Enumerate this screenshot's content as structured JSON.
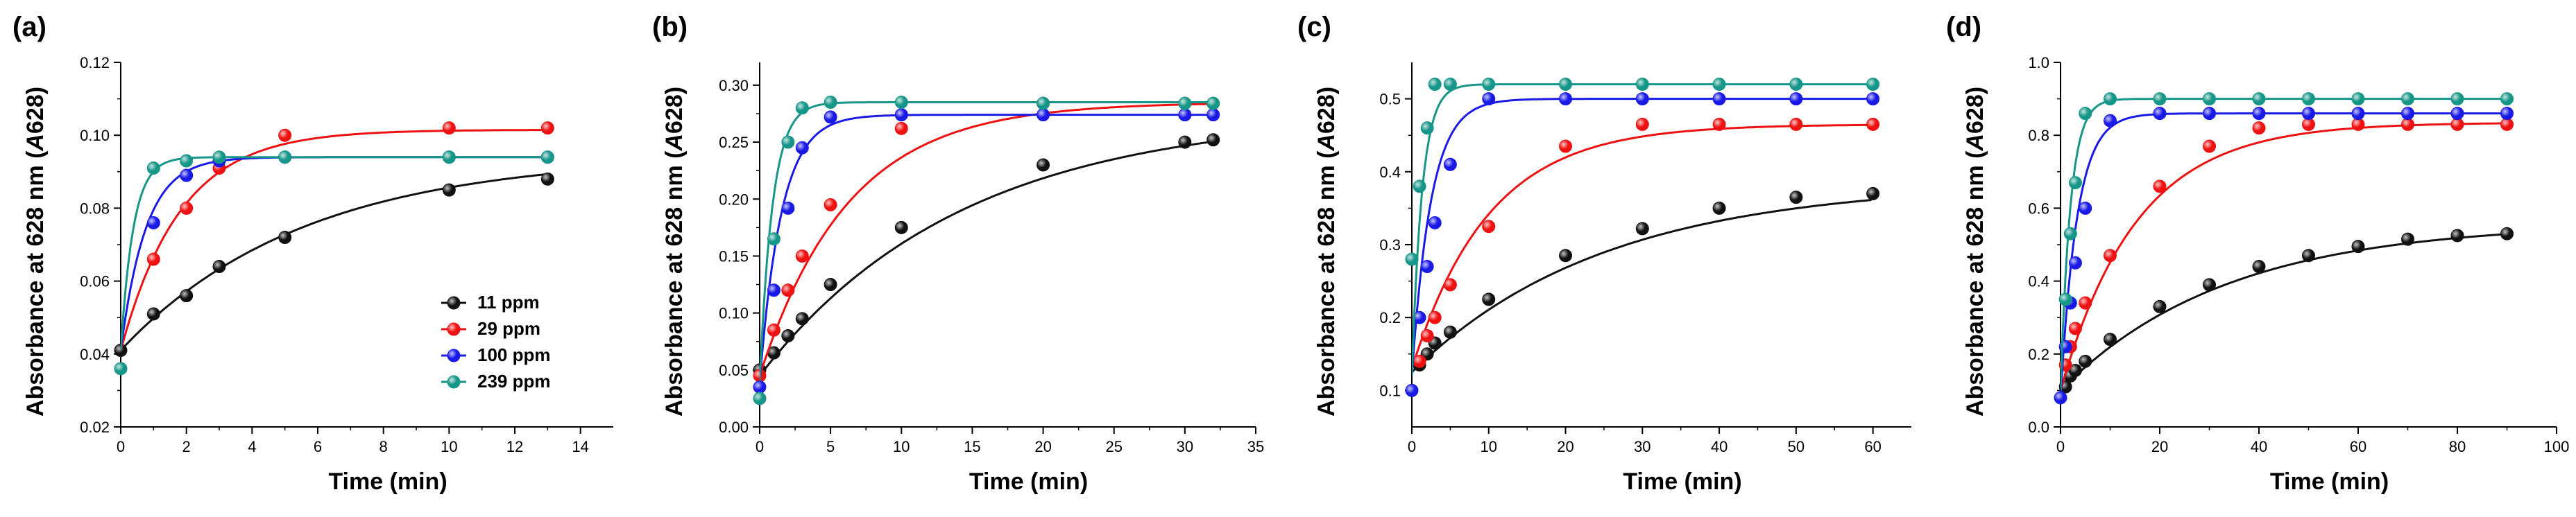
{
  "chart_data": [
    {
      "type": "scatter",
      "panel_label": "(a)",
      "xlabel": "Time (min)",
      "ylabel_prefix": "Absorbance at 628 nm (",
      "ylabel_italic": "A",
      "ylabel_suffix": "628)",
      "xlim": [
        0,
        15
      ],
      "ylim": [
        0.02,
        0.12
      ],
      "xticks": [
        0,
        2,
        4,
        6,
        8,
        10,
        12,
        14
      ],
      "xtick_labels": [
        "0",
        "2",
        "4",
        "6",
        "8",
        "10",
        "12",
        "14"
      ],
      "yticks": [
        0.02,
        0.04,
        0.06,
        0.08,
        0.1,
        0.12
      ],
      "ytick_labels": [
        "0.02",
        "0.04",
        "0.06",
        "0.08",
        "0.10",
        "0.12"
      ],
      "series": [
        {
          "name": "11 ppm",
          "color": "#111111",
          "x": [
            0,
            1,
            2,
            3,
            5,
            10,
            13
          ],
          "y": [
            0.041,
            0.051,
            0.056,
            0.064,
            0.072,
            0.085,
            0.088
          ],
          "y0": 0.041,
          "A": 0.0535,
          "k": 0.18
        },
        {
          "name": "29 ppm",
          "color": "#ee1111",
          "x": [
            1,
            2,
            3,
            5,
            10,
            13
          ],
          "y": [
            0.066,
            0.08,
            0.091,
            0.1,
            0.102,
            0.102
          ],
          "y0": 0.041,
          "A": 0.0605,
          "k": 0.55
        },
        {
          "name": "100 ppm",
          "color": "#1a1ae6",
          "x": [
            1,
            2,
            3,
            5,
            10,
            13
          ],
          "y": [
            0.076,
            0.089,
            0.093,
            0.094,
            0.094,
            0.094
          ],
          "y0": 0.041,
          "A": 0.053,
          "k": 1.3
        },
        {
          "name": "239 ppm",
          "color": "#169688",
          "x": [
            0,
            1,
            2,
            3,
            5,
            10,
            13
          ],
          "y": [
            0.036,
            0.091,
            0.093,
            0.094,
            0.094,
            0.094,
            0.094
          ],
          "y0": 0.041,
          "A": 0.053,
          "k": 2.6
        }
      ],
      "legend": [
        "11 ppm",
        "29 ppm",
        "100 ppm",
        "239 ppm"
      ]
    },
    {
      "type": "scatter",
      "panel_label": "(b)",
      "xlabel": "Time (min)",
      "ylabel_prefix": "Absorbance at 628 nm (",
      "ylabel_italic": "A",
      "ylabel_suffix": "628)",
      "xlim": [
        0,
        35
      ],
      "ylim": [
        0.0,
        0.32
      ],
      "xticks": [
        0,
        5,
        10,
        15,
        20,
        25,
        30,
        35
      ],
      "xtick_labels": [
        "0",
        "5",
        "10",
        "15",
        "20",
        "25",
        "30",
        "35"
      ],
      "yticks": [
        0.0,
        0.05,
        0.1,
        0.15,
        0.2,
        0.25,
        0.3
      ],
      "ytick_labels": [
        "0.00",
        "0.05",
        "0.10",
        "0.15",
        "0.20",
        "0.25",
        "0.30"
      ],
      "series": [
        {
          "name": "11 ppm",
          "color": "#111111",
          "x": [
            0,
            1,
            2,
            3,
            5,
            10,
            20,
            30,
            32
          ],
          "y": [
            0.05,
            0.065,
            0.08,
            0.095,
            0.125,
            0.175,
            0.23,
            0.25,
            0.252
          ],
          "y0": 0.045,
          "A": 0.23,
          "k": 0.07
        },
        {
          "name": "29 ppm",
          "color": "#ee1111",
          "x": [
            0,
            1,
            2,
            3,
            5,
            10,
            20,
            30,
            32
          ],
          "y": [
            0.045,
            0.085,
            0.12,
            0.15,
            0.195,
            0.262,
            0.284,
            0.284,
            0.284
          ],
          "y0": 0.045,
          "A": 0.24,
          "k": 0.16
        },
        {
          "name": "100 ppm",
          "color": "#1a1ae6",
          "x": [
            0,
            1,
            2,
            3,
            5,
            10,
            20,
            30,
            32
          ],
          "y": [
            0.035,
            0.12,
            0.192,
            0.245,
            0.272,
            0.274,
            0.274,
            0.274,
            0.274
          ],
          "y0": 0.04,
          "A": 0.234,
          "k": 0.65
        },
        {
          "name": "239 ppm",
          "color": "#169688",
          "x": [
            0,
            1,
            2,
            3,
            5,
            10,
            20,
            30,
            32
          ],
          "y": [
            0.025,
            0.165,
            0.25,
            0.28,
            0.285,
            0.285,
            0.284,
            0.284,
            0.284
          ],
          "y0": 0.04,
          "A": 0.245,
          "k": 1.1
        }
      ]
    },
    {
      "type": "scatter",
      "panel_label": "(c)",
      "xlabel": "Time (min)",
      "ylabel_prefix": "Absorbance at 628 nm (",
      "ylabel_italic": "A",
      "ylabel_suffix": "628)",
      "xlim": [
        0,
        65
      ],
      "ylim": [
        0.05,
        0.55
      ],
      "xticks": [
        0,
        10,
        20,
        30,
        40,
        50,
        60
      ],
      "xtick_labels": [
        "0",
        "10",
        "20",
        "30",
        "40",
        "50",
        "60"
      ],
      "yticks": [
        0.1,
        0.2,
        0.3,
        0.4,
        0.5
      ],
      "ytick_labels": [
        "0.1",
        "0.2",
        "0.3",
        "0.4",
        "0.5"
      ],
      "series": [
        {
          "name": "11 ppm",
          "color": "#111111",
          "x": [
            1,
            2,
            3,
            5,
            10,
            20,
            30,
            40,
            50,
            60
          ],
          "y": [
            0.135,
            0.15,
            0.165,
            0.18,
            0.225,
            0.285,
            0.322,
            0.35,
            0.365,
            0.37
          ],
          "y0": 0.125,
          "A": 0.26,
          "k": 0.04
        },
        {
          "name": "29 ppm",
          "color": "#ee1111",
          "x": [
            1,
            2,
            3,
            5,
            10,
            20,
            30,
            40,
            50,
            60
          ],
          "y": [
            0.14,
            0.175,
            0.2,
            0.245,
            0.325,
            0.435,
            0.465,
            0.465,
            0.465,
            0.465
          ],
          "y0": 0.13,
          "A": 0.335,
          "k": 0.1
        },
        {
          "name": "100 ppm",
          "color": "#1a1ae6",
          "x": [
            0,
            1,
            2,
            3,
            5,
            10,
            20,
            30,
            40,
            50,
            60
          ],
          "y": [
            0.1,
            0.2,
            0.27,
            0.33,
            0.41,
            0.5,
            0.5,
            0.5,
            0.5,
            0.5,
            0.5
          ],
          "y0": 0.12,
          "A": 0.38,
          "k": 0.4
        },
        {
          "name": "239 ppm",
          "color": "#169688",
          "x": [
            0,
            1,
            2,
            3,
            5,
            10,
            20,
            30,
            40,
            50,
            60
          ],
          "y": [
            0.28,
            0.38,
            0.46,
            0.52,
            0.52,
            0.52,
            0.52,
            0.52,
            0.52,
            0.52,
            0.52
          ],
          "y0": 0.12,
          "A": 0.4,
          "k": 0.75
        }
      ]
    },
    {
      "type": "scatter",
      "panel_label": "(d)",
      "xlabel": "Time (min)",
      "ylabel_prefix": "Absorbance at 628 nm (",
      "ylabel_italic": "A",
      "ylabel_suffix": "628)",
      "xlim": [
        0,
        100
      ],
      "ylim": [
        0.0,
        1.0
      ],
      "xticks": [
        0,
        20,
        40,
        60,
        80,
        100
      ],
      "xtick_labels": [
        "0",
        "20",
        "40",
        "60",
        "80",
        "100"
      ],
      "yticks": [
        0.0,
        0.2,
        0.4,
        0.6,
        0.8,
        1.0
      ],
      "ytick_labels": [
        "0.0",
        "0.2",
        "0.4",
        "0.6",
        "0.8",
        "1.0"
      ],
      "series": [
        {
          "name": "11 ppm",
          "color": "#111111",
          "x": [
            1,
            2,
            3,
            5,
            10,
            20,
            30,
            40,
            50,
            60,
            70,
            80,
            90
          ],
          "y": [
            0.11,
            0.14,
            0.155,
            0.18,
            0.24,
            0.33,
            0.39,
            0.44,
            0.47,
            0.495,
            0.515,
            0.525,
            0.53
          ],
          "y0": 0.1,
          "A": 0.46,
          "k": 0.03
        },
        {
          "name": "29 ppm",
          "color": "#ee1111",
          "x": [
            1,
            2,
            3,
            5,
            10,
            20,
            30,
            40,
            50,
            60,
            70,
            80,
            90
          ],
          "y": [
            0.17,
            0.22,
            0.27,
            0.34,
            0.47,
            0.66,
            0.77,
            0.82,
            0.83,
            0.83,
            0.83,
            0.83,
            0.83
          ],
          "y0": 0.1,
          "A": 0.735,
          "k": 0.065
        },
        {
          "name": "100 ppm",
          "color": "#1a1ae6",
          "x": [
            0,
            1,
            2,
            3,
            5,
            10,
            20,
            30,
            40,
            50,
            60,
            70,
            80,
            90
          ],
          "y": [
            0.08,
            0.22,
            0.34,
            0.45,
            0.6,
            0.84,
            0.86,
            0.86,
            0.86,
            0.86,
            0.86,
            0.86,
            0.86,
            0.86
          ],
          "y0": 0.08,
          "A": 0.78,
          "k": 0.3
        },
        {
          "name": "239 ppm",
          "color": "#169688",
          "x": [
            1,
            2,
            3,
            5,
            10,
            20,
            30,
            40,
            50,
            60,
            70,
            80,
            90
          ],
          "y": [
            0.35,
            0.53,
            0.67,
            0.86,
            0.9,
            0.9,
            0.9,
            0.9,
            0.9,
            0.9,
            0.9,
            0.9,
            0.9
          ],
          "y0": 0.1,
          "A": 0.8,
          "k": 0.5
        }
      ]
    }
  ]
}
